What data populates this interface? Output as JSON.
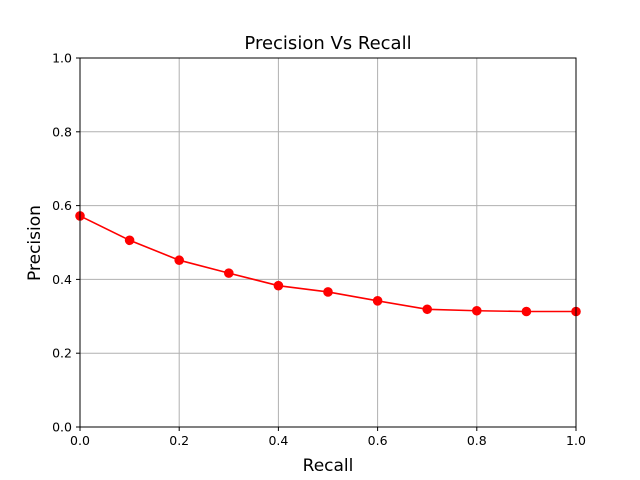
{
  "chart_data": {
    "type": "line",
    "title": "Precision Vs Recall",
    "xlabel": "Recall",
    "ylabel": "Precision",
    "xlim": [
      0.0,
      1.0
    ],
    "ylim": [
      0.0,
      1.0
    ],
    "grid": true,
    "xticks": [
      "0.0",
      "0.2",
      "0.4",
      "0.6",
      "0.8",
      "1.0"
    ],
    "yticks": [
      "0.0",
      "0.2",
      "0.4",
      "0.6",
      "0.8",
      "1.0"
    ],
    "series": [
      {
        "color": "#ff0000",
        "marker": "circle",
        "x": [
          0.0,
          0.1,
          0.2,
          0.3,
          0.4,
          0.5,
          0.6,
          0.7,
          0.8,
          0.9,
          1.0
        ],
        "y": [
          0.572,
          0.506,
          0.452,
          0.417,
          0.383,
          0.366,
          0.342,
          0.319,
          0.315,
          0.313,
          0.313
        ]
      }
    ]
  }
}
